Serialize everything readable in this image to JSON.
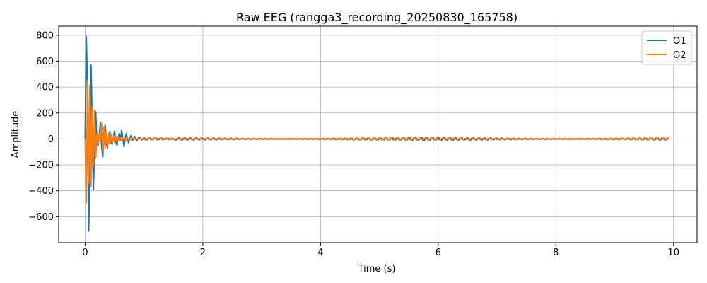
{
  "chart_data": {
    "type": "line",
    "title": "Raw EEG (rangga3_recording_20250830_165758)",
    "xlabel": "Time (s)",
    "ylabel": "Amplitude",
    "xlim": [
      -0.45,
      10.4
    ],
    "ylim": [
      -800,
      870
    ],
    "xticks": [
      0,
      2,
      4,
      6,
      8,
      10
    ],
    "yticks": [
      -600,
      -400,
      -200,
      0,
      200,
      400,
      600,
      800
    ],
    "xtick_labels": [
      "0",
      "2",
      "4",
      "6",
      "8",
      "10"
    ],
    "ytick_labels": [
      "−600",
      "−400",
      "−200",
      "0",
      "200",
      "400",
      "600",
      "800"
    ],
    "grid": true,
    "legend_position": "top-right",
    "series": [
      {
        "name": "O1",
        "color": "#1f77b4",
        "x": [
          0.0,
          0.02,
          0.04,
          0.06,
          0.08,
          0.1,
          0.12,
          0.14,
          0.16,
          0.18,
          0.2,
          0.22,
          0.24,
          0.26,
          0.28,
          0.3,
          0.32,
          0.34,
          0.36,
          0.38,
          0.4,
          0.42,
          0.44,
          0.46,
          0.48,
          0.5,
          0.52,
          0.54,
          0.56,
          0.58,
          0.6,
          0.62,
          0.64,
          0.66,
          0.68,
          0.7,
          0.72,
          0.74,
          0.76,
          0.78,
          0.8,
          0.84,
          0.88,
          0.92,
          0.96,
          1.0,
          1.05,
          1.1,
          1.15,
          1.2,
          1.25,
          1.3,
          1.35,
          1.4,
          1.45,
          1.5
        ],
        "y": [
          0,
          790,
          380,
          -710,
          -300,
          570,
          120,
          -390,
          -80,
          210,
          -40,
          -50,
          30,
          130,
          -60,
          -140,
          40,
          110,
          -40,
          -70,
          30,
          60,
          -30,
          -40,
          20,
          60,
          -20,
          -50,
          10,
          40,
          -10,
          65,
          10,
          -60,
          5,
          40,
          -10,
          -30,
          10,
          25,
          -15,
          20,
          -10,
          15,
          -8,
          10,
          -8,
          8,
          -5,
          8,
          -5,
          6,
          -4,
          5,
          -3,
          2
        ]
      },
      {
        "name": "O2",
        "color": "#ff7f0e",
        "x": [
          0.0,
          0.02,
          0.04,
          0.06,
          0.08,
          0.1,
          0.12,
          0.14,
          0.16,
          0.18,
          0.2,
          0.22,
          0.24,
          0.26,
          0.28,
          0.3,
          0.32,
          0.34,
          0.36,
          0.38,
          0.4,
          0.42,
          0.44,
          0.46,
          0.48,
          0.5,
          0.52,
          0.54,
          0.56,
          0.58,
          0.6,
          0.62,
          0.64,
          0.66,
          0.68,
          0.7,
          0.72,
          0.74,
          0.76,
          0.78,
          0.8,
          0.85,
          0.9,
          0.95,
          1.0
        ],
        "y": [
          0,
          -490,
          450,
          -340,
          410,
          -370,
          250,
          -210,
          220,
          -150,
          40,
          -30,
          40,
          -20,
          120,
          -100,
          90,
          -70,
          60,
          -60,
          40,
          -40,
          30,
          -30,
          25,
          -25,
          20,
          -20,
          15,
          -15,
          10,
          -10,
          10,
          -8,
          8,
          -6,
          6,
          -5,
          5,
          -4,
          4,
          -3,
          3,
          -2,
          1
        ]
      }
    ]
  }
}
